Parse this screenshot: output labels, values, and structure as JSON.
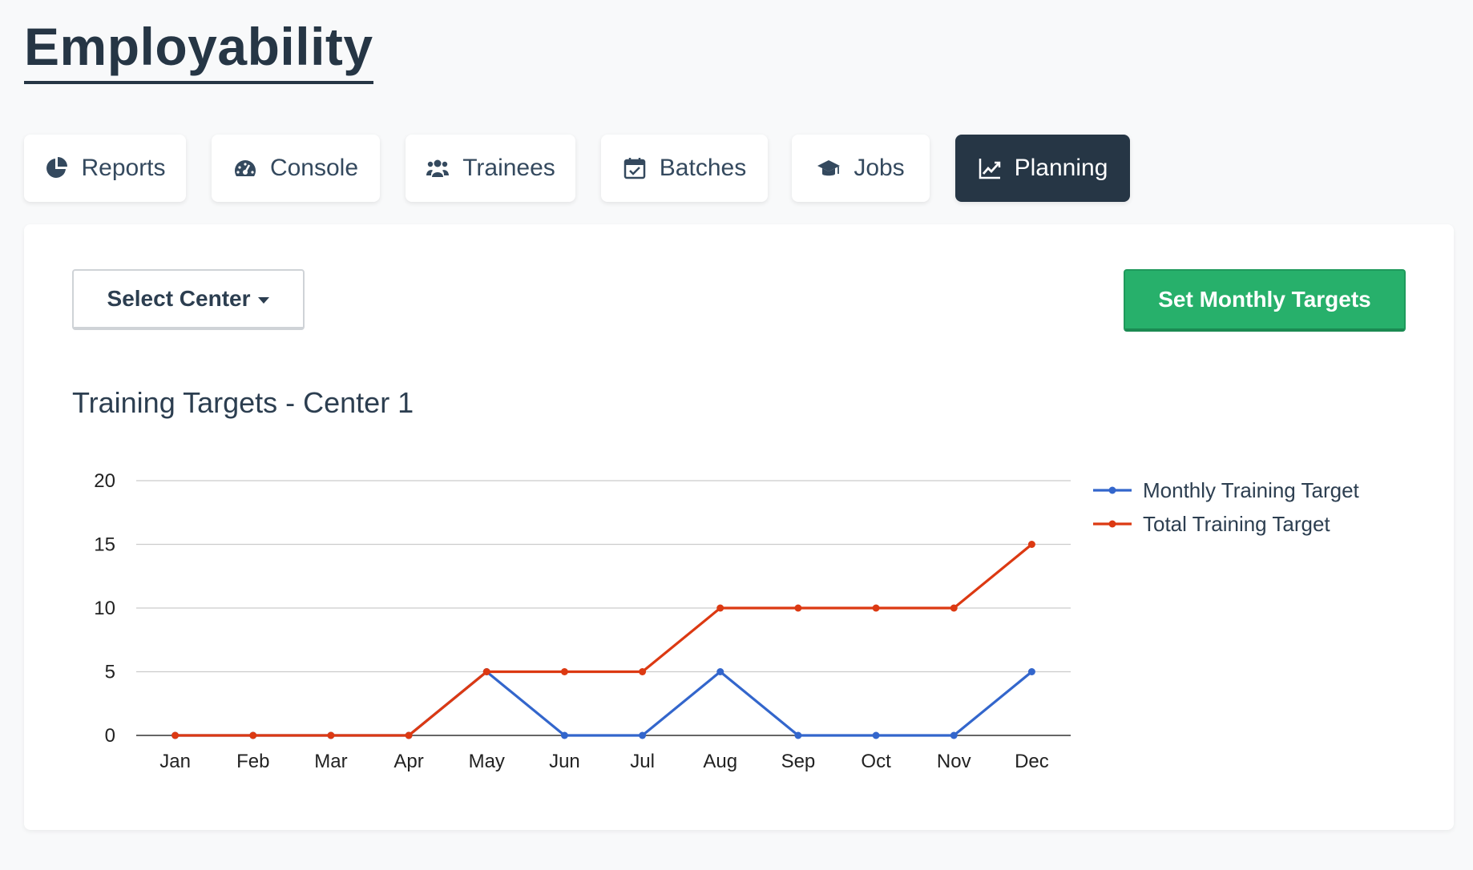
{
  "app": {
    "title": "Employability"
  },
  "tabs": [
    {
      "label": "Reports",
      "icon": "pie-chart-icon",
      "active": false
    },
    {
      "label": "Console",
      "icon": "dashboard-icon",
      "active": false
    },
    {
      "label": "Trainees",
      "icon": "users-icon",
      "active": false
    },
    {
      "label": "Batches",
      "icon": "calendar-check-icon",
      "active": false
    },
    {
      "label": "Jobs",
      "icon": "graduation-cap-icon",
      "active": false
    },
    {
      "label": "Planning",
      "icon": "line-chart-icon",
      "active": true
    }
  ],
  "controls": {
    "select_center_label": "Select Center",
    "set_targets_label": "Set Monthly Targets"
  },
  "colors": {
    "active_tab": "#263645",
    "set_targets_button": "#27b06b",
    "monthly_series": "#3366cc",
    "total_series": "#dc3912"
  },
  "chart_data": {
    "type": "line",
    "title": "Training Targets - Center 1",
    "xlabel": "",
    "ylabel": "",
    "categories": [
      "Jan",
      "Feb",
      "Mar",
      "Apr",
      "May",
      "Jun",
      "Jul",
      "Aug",
      "Sep",
      "Oct",
      "Nov",
      "Dec"
    ],
    "ylim": [
      0,
      20
    ],
    "yticks": [
      0,
      5,
      10,
      15,
      20
    ],
    "grid": true,
    "legend_position": "right",
    "series": [
      {
        "name": "Monthly Training Target",
        "color": "#3366cc",
        "values": [
          0,
          0,
          0,
          0,
          5,
          0,
          0,
          5,
          0,
          0,
          0,
          5
        ]
      },
      {
        "name": "Total Training Target",
        "color": "#dc3912",
        "values": [
          0,
          0,
          0,
          0,
          5,
          5,
          5,
          10,
          10,
          10,
          10,
          15
        ]
      }
    ]
  }
}
